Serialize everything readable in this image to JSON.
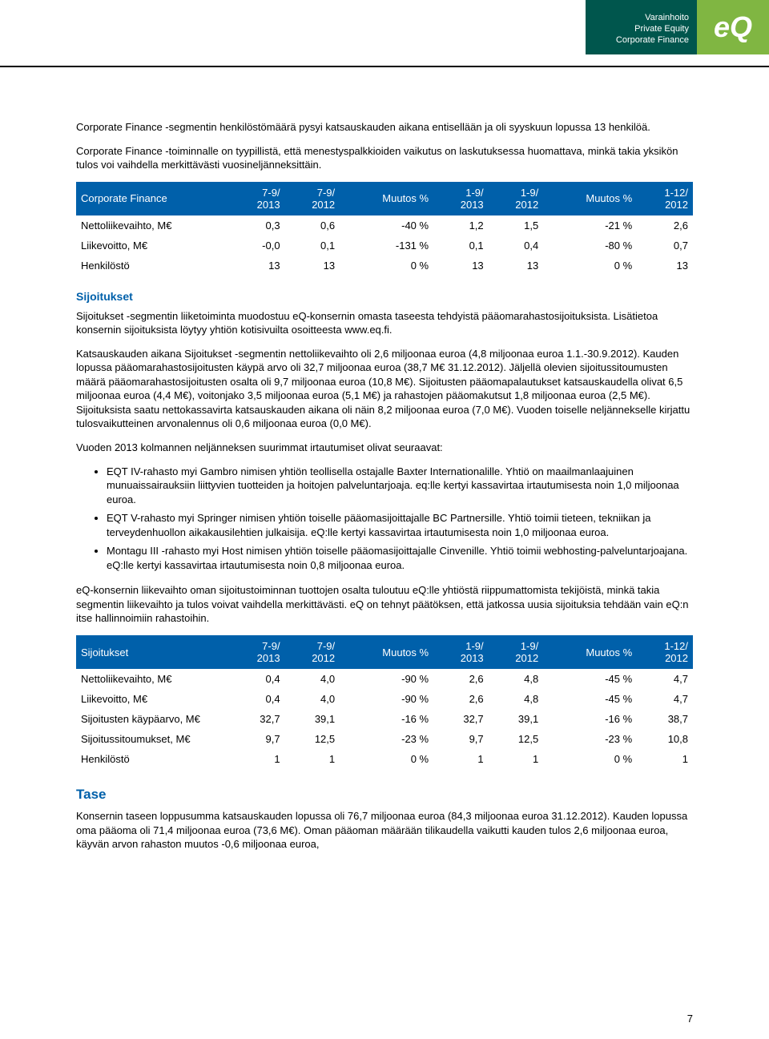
{
  "header": {
    "line1": "Varainhoito",
    "line2": "Private Equity",
    "line3": "Corporate Finance",
    "logo": "eQ"
  },
  "intro": {
    "p1": "Corporate Finance -segmentin henkilöstömäärä pysyi katsauskauden aikana entisellään ja oli syyskuun lopussa 13 henkilöä.",
    "p2": "Corporate Finance -toiminnalle on tyypillistä, että menestyspalkkioiden vaikutus on laskutuksessa huomattava, minkä takia yksikön tulos voi vaihdella merkittävästi vuosineljänneksittäin."
  },
  "table1": {
    "title": "Corporate Finance",
    "headers": [
      "7-9/\n2013",
      "7-9/\n2012",
      "Muutos %",
      "1-9/\n2013",
      "1-9/\n2012",
      "Muutos %",
      "1-12/\n2012"
    ],
    "rows": [
      [
        "Nettoliikevaihto, M€",
        "0,3",
        "0,6",
        "-40 %",
        "1,2",
        "1,5",
        "-21 %",
        "2,6"
      ],
      [
        "Liikevoitto, M€",
        "-0,0",
        "0,1",
        "-131 %",
        "0,1",
        "0,4",
        "-80 %",
        "0,7"
      ],
      [
        "Henkilöstö",
        "13",
        "13",
        "0 %",
        "13",
        "13",
        "0 %",
        "13"
      ]
    ]
  },
  "sijoitukset": {
    "heading": "Sijoitukset",
    "p1": "Sijoitukset -segmentin liiketoiminta muodostuu eQ-konsernin omasta taseesta tehdyistä pääomarahastosijoituksista. Lisätietoa konsernin sijoituksista löytyy yhtiön kotisivuilta osoitteesta www.eq.fi.",
    "p2": "Katsauskauden aikana Sijoitukset -segmentin nettoliikevaihto oli 2,6 miljoonaa euroa (4,8 miljoonaa euroa 1.1.-30.9.2012). Kauden lopussa pääomarahastosijoitusten käypä arvo oli 32,7 miljoonaa euroa (38,7 M€ 31.12.2012). Jäljellä olevien sijoitussitoumusten määrä pääomarahastosijoitusten osalta oli 9,7 miljoonaa euroa (10,8 M€). Sijoitusten pääomapalautukset katsauskaudella olivat 6,5 miljoonaa euroa (4,4 M€), voitonjako 3,5 miljoonaa euroa (5,1 M€) ja rahastojen pääomakutsut 1,8 miljoonaa euroa (2,5 M€). Sijoituksista saatu nettokassavirta katsauskauden aikana oli näin 8,2 miljoonaa euroa (7,0 M€). Vuoden toiselle neljännekselle kirjattu tulosvaikutteinen arvonalennus oli 0,6 miljoonaa euroa (0,0 M€).",
    "p3": "Vuoden 2013 kolmannen neljänneksen suurimmat irtautumiset olivat seuraavat:",
    "bullets": [
      "EQT IV-rahasto myi Gambro nimisen yhtiön teollisella ostajalle Baxter Internationalille. Yhtiö on maailmanlaajuinen munuaissairauksiin liittyvien tuotteiden ja hoitojen palveluntarjoaja. eq:lle kertyi kassavirtaa irtautumisesta noin 1,0 miljoonaa euroa.",
      "EQT V-rahasto myi Springer nimisen yhtiön toiselle pääomasijoittajalle BC Partnersille. Yhtiö toimii tieteen, tekniikan ja terveydenhuollon aikakausilehtien julkaisija. eQ:lle kertyi kassavirtaa irtautumisesta noin 1,0 miljoonaa euroa.",
      "Montagu III -rahasto myi Host nimisen yhtiön toiselle pääomasijoittajalle Cinvenille. Yhtiö toimii webhosting-palveluntarjoajana. eQ:lle kertyi kassavirtaa irtautumisesta noin 0,8 miljoonaa euroa."
    ],
    "p4": "eQ-konsernin liikevaihto oman sijoitustoiminnan tuottojen osalta tuloutuu eQ:lle yhtiöstä riippumattomista tekijöistä, minkä takia segmentin liikevaihto ja tulos voivat vaihdella merkittävästi. eQ on tehnyt päätöksen, että jatkossa uusia sijoituksia tehdään vain eQ:n itse hallinnoimiin rahastoihin."
  },
  "table2": {
    "title": "Sijoitukset",
    "headers": [
      "7-9/\n2013",
      "7-9/\n2012",
      "Muutos %",
      "1-9/\n2013",
      "1-9/\n2012",
      "Muutos %",
      "1-12/\n2012"
    ],
    "rows": [
      [
        "Nettoliikevaihto, M€",
        "0,4",
        "4,0",
        "-90 %",
        "2,6",
        "4,8",
        "-45 %",
        "4,7"
      ],
      [
        "Liikevoitto, M€",
        "0,4",
        "4,0",
        "-90 %",
        "2,6",
        "4,8",
        "-45 %",
        "4,7"
      ],
      [
        "Sijoitusten käypäarvo, M€",
        "32,7",
        "39,1",
        "-16 %",
        "32,7",
        "39,1",
        "-16 %",
        "38,7"
      ],
      [
        "Sijoitussitoumukset, M€",
        "9,7",
        "12,5",
        "-23 %",
        "9,7",
        "12,5",
        "-23 %",
        "10,8"
      ],
      [
        "Henkilöstö",
        "1",
        "1",
        "0 %",
        "1",
        "1",
        "0 %",
        "1"
      ]
    ]
  },
  "tase": {
    "heading": "Tase",
    "p1": "Konsernin taseen loppusumma katsauskauden lopussa oli 76,7 miljoonaa euroa (84,3 miljoonaa euroa 31.12.2012). Kauden lopussa oma pääoma oli 71,4 miljoonaa euroa (73,6 M€). Oman pääoman määrään tilikaudella vaikutti kauden tulos 2,6 miljoonaa euroa, käyvän arvon rahaston muutos -0,6 miljoonaa euroa,"
  },
  "page_number": "7",
  "colors": {
    "blue": "#0060aa",
    "dark_teal": "#00564d",
    "green": "#80b642"
  }
}
